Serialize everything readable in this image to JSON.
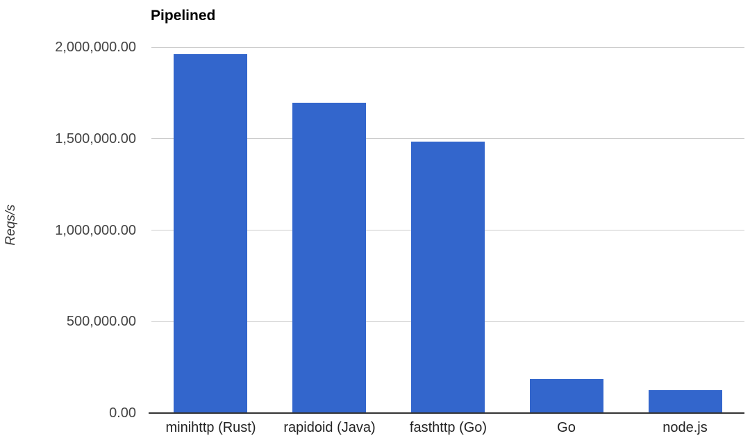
{
  "chart_data": {
    "type": "bar",
    "title": "Pipelined",
    "categories": [
      "minihttp (Rust)",
      "rapidoid (Java)",
      "fasthttp (Go)",
      "Go",
      "node.js"
    ],
    "values": [
      1963000,
      1697000,
      1484000,
      186000,
      125000
    ],
    "xlabel": "",
    "ylabel": "Reqs/s",
    "ylim": [
      0,
      2000000
    ],
    "ytick_step": 500000,
    "ytick_labels": [
      "0.00",
      "500,000.00",
      "1,000,000.00",
      "1,500,000.00",
      "2,000,000.00"
    ],
    "grid": true,
    "legend_position": "none",
    "bar_color": "#3366cc",
    "gridline_color": "#cccccc",
    "baseline_color": "#333333",
    "title_color": "#000000",
    "ytick_color": "#444444",
    "xtick_color": "#222222"
  }
}
